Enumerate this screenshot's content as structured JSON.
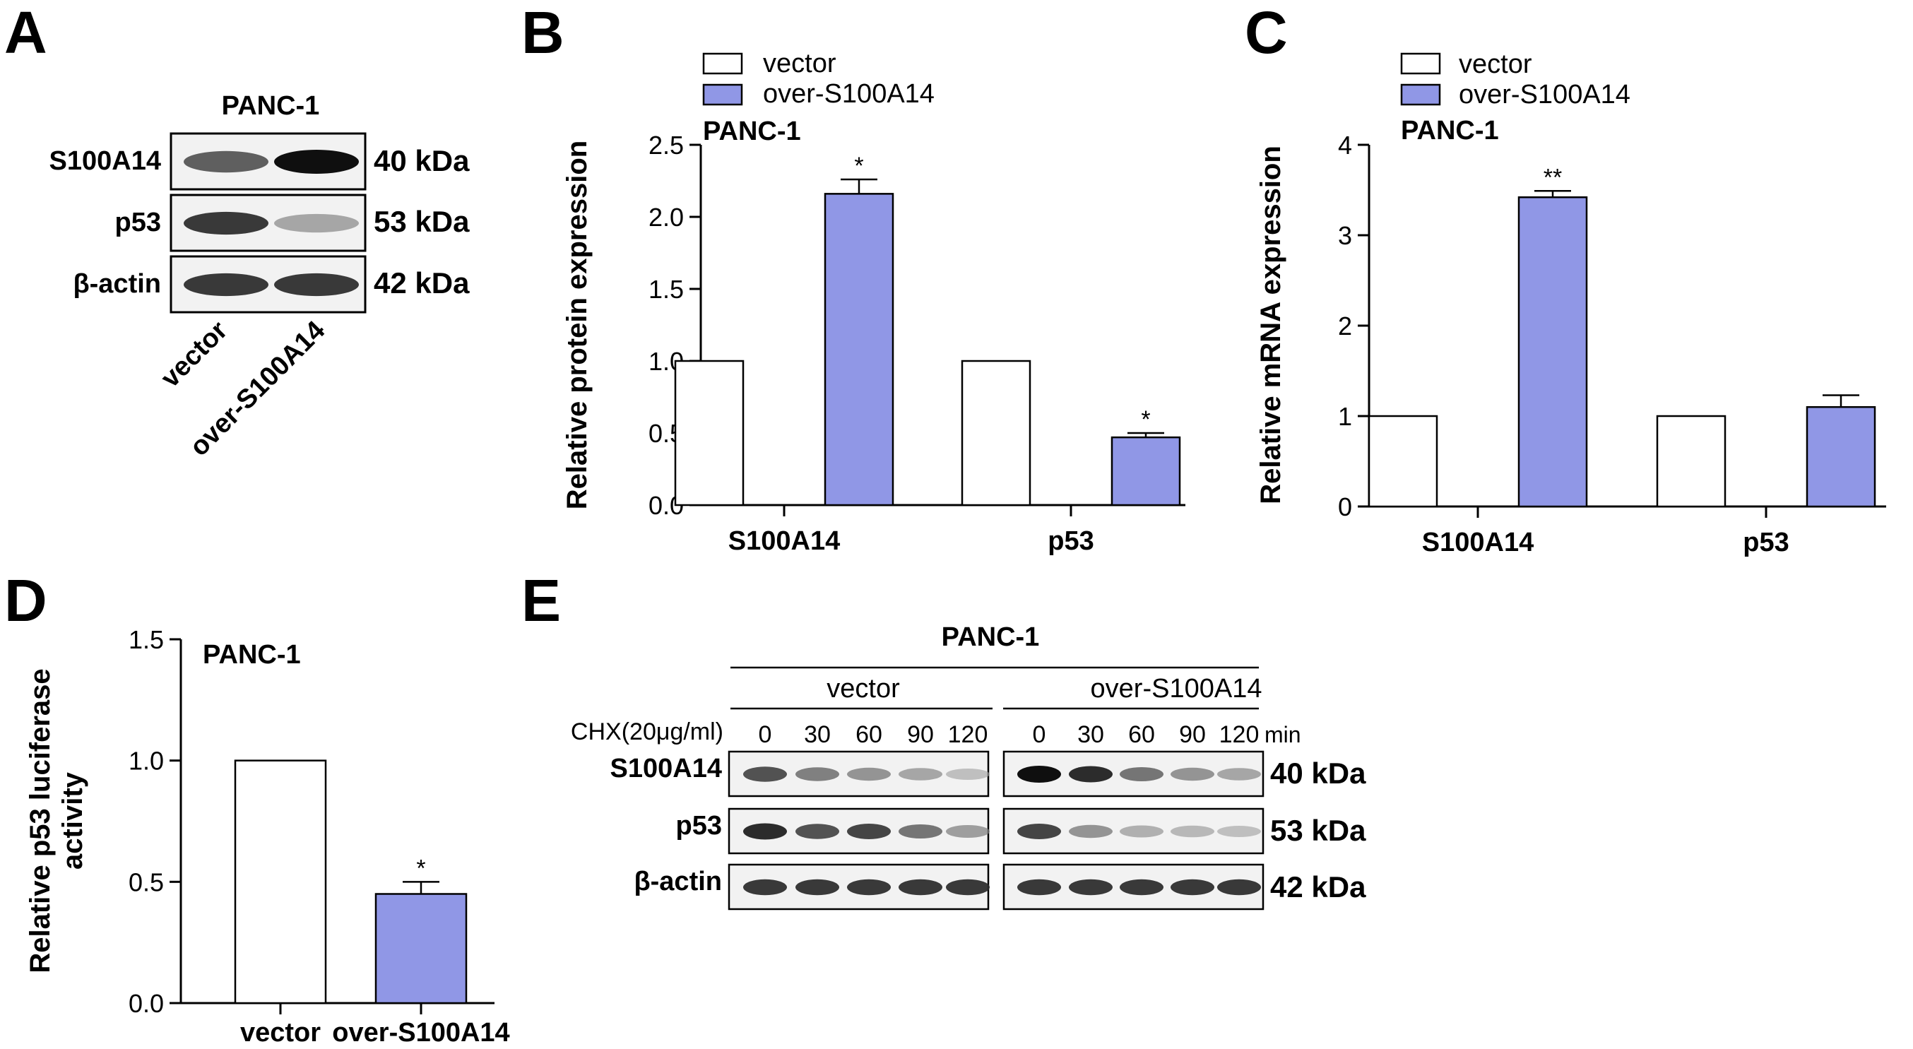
{
  "panels": {
    "A": {
      "letter": "A",
      "cell_line": "PANC-1",
      "rows": [
        {
          "label": "S100A14",
          "kda": "40 kDa"
        },
        {
          "label": "p53",
          "kda": "53 kDa"
        },
        {
          "label": "β-actin",
          "kda": "42 kDa"
        }
      ],
      "lanes": [
        "vector",
        "over-S100A14"
      ],
      "band_intensity": {
        "S100A14": [
          0.7,
          1.0
        ],
        "p53": [
          0.85,
          0.35
        ],
        "β-actin": [
          0.85,
          0.85
        ]
      }
    },
    "B": {
      "letter": "B"
    },
    "C": {
      "letter": "C"
    },
    "D": {
      "letter": "D"
    },
    "E": {
      "letter": "E",
      "cell_line": "PANC-1",
      "groups": [
        "vector",
        "over-S100A14"
      ],
      "treatment_label": "CHX(20μg/ml)",
      "time_points": [
        "0",
        "30",
        "60",
        "90",
        "120"
      ],
      "time_unit": "min",
      "rows": [
        {
          "label": "S100A14",
          "kda": "40 kDa"
        },
        {
          "label": "p53",
          "kda": "53 kDa"
        },
        {
          "label": "β-actin",
          "kda": "42 kDa"
        }
      ],
      "band_intensity": {
        "vector": {
          "S100A14": [
            0.75,
            0.55,
            0.45,
            0.35,
            0.2
          ],
          "p53": [
            0.9,
            0.75,
            0.8,
            0.6,
            0.4
          ],
          "β-actin": [
            0.85,
            0.85,
            0.85,
            0.85,
            0.85
          ]
        },
        "over-S100A14": {
          "S100A14": [
            1.0,
            0.9,
            0.6,
            0.45,
            0.35
          ],
          "p53": [
            0.8,
            0.45,
            0.3,
            0.25,
            0.2
          ],
          "β-actin": [
            0.85,
            0.85,
            0.85,
            0.85,
            0.85
          ]
        }
      }
    }
  },
  "legend": {
    "vector_label": "vector",
    "over_label": "over-S100A14"
  },
  "colors": {
    "vector_fill": "#ffffff",
    "over_fill": "#9097e6",
    "stroke": "#000000"
  },
  "chart_data": [
    {
      "id": "B",
      "type": "bar",
      "title": "PANC-1",
      "categories": [
        "S100A14",
        "p53"
      ],
      "series": [
        {
          "name": "vector",
          "values": [
            1.0,
            1.0
          ],
          "errors": [
            0,
            0
          ]
        },
        {
          "name": "over-S100A14",
          "values": [
            2.16,
            0.47
          ],
          "errors": [
            0.1,
            0.03
          ]
        }
      ],
      "significance": [
        {
          "category": "S100A14",
          "label": "*"
        },
        {
          "category": "p53",
          "label": "*"
        }
      ],
      "xlabel": "",
      "ylabel": "Relative protein expression",
      "ylim": [
        0,
        2.5
      ],
      "yticks": [
        "0.0",
        "0.5",
        "1.0",
        "1.5",
        "2.0",
        "2.5"
      ],
      "ytick_values": [
        0,
        0.5,
        1.0,
        1.5,
        2.0,
        2.5
      ],
      "legend": [
        "vector",
        "over-S100A14"
      ],
      "legend_position": "top-left"
    },
    {
      "id": "C",
      "type": "bar",
      "title": "PANC-1",
      "categories": [
        "S100A14",
        "p53"
      ],
      "series": [
        {
          "name": "vector",
          "values": [
            1.0,
            1.0
          ],
          "errors": [
            0,
            0
          ]
        },
        {
          "name": "over-S100A14",
          "values": [
            3.42,
            1.1
          ],
          "errors": [
            0.07,
            0.13
          ]
        }
      ],
      "significance": [
        {
          "category": "S100A14",
          "label": "**"
        }
      ],
      "xlabel": "",
      "ylabel": "Relative mRNA expression",
      "ylim": [
        0,
        4
      ],
      "yticks": [
        "0",
        "1",
        "2",
        "3",
        "4"
      ],
      "ytick_values": [
        0,
        1,
        2,
        3,
        4
      ],
      "legend": [
        "vector",
        "over-S100A14"
      ],
      "legend_position": "top-left"
    },
    {
      "id": "D",
      "type": "bar",
      "title": "PANC-1",
      "categories": [
        "vector",
        "over-S100A14"
      ],
      "series": [
        {
          "name": "Relative p53 luciferase activity",
          "values": [
            1.0,
            0.45
          ],
          "errors": [
            0,
            0.05
          ]
        }
      ],
      "significance": [
        {
          "category": "over-S100A14",
          "label": "*"
        }
      ],
      "xlabel": "",
      "ylabel": "Relative p53 luciferase activity",
      "ylabel_lines": [
        "Relative p53 luciferase",
        "activity"
      ],
      "ylim": [
        0,
        1.5
      ],
      "yticks": [
        "0.0",
        "0.5",
        "1.0",
        "1.5"
      ],
      "ytick_values": [
        0,
        0.5,
        1.0,
        1.5
      ]
    }
  ]
}
